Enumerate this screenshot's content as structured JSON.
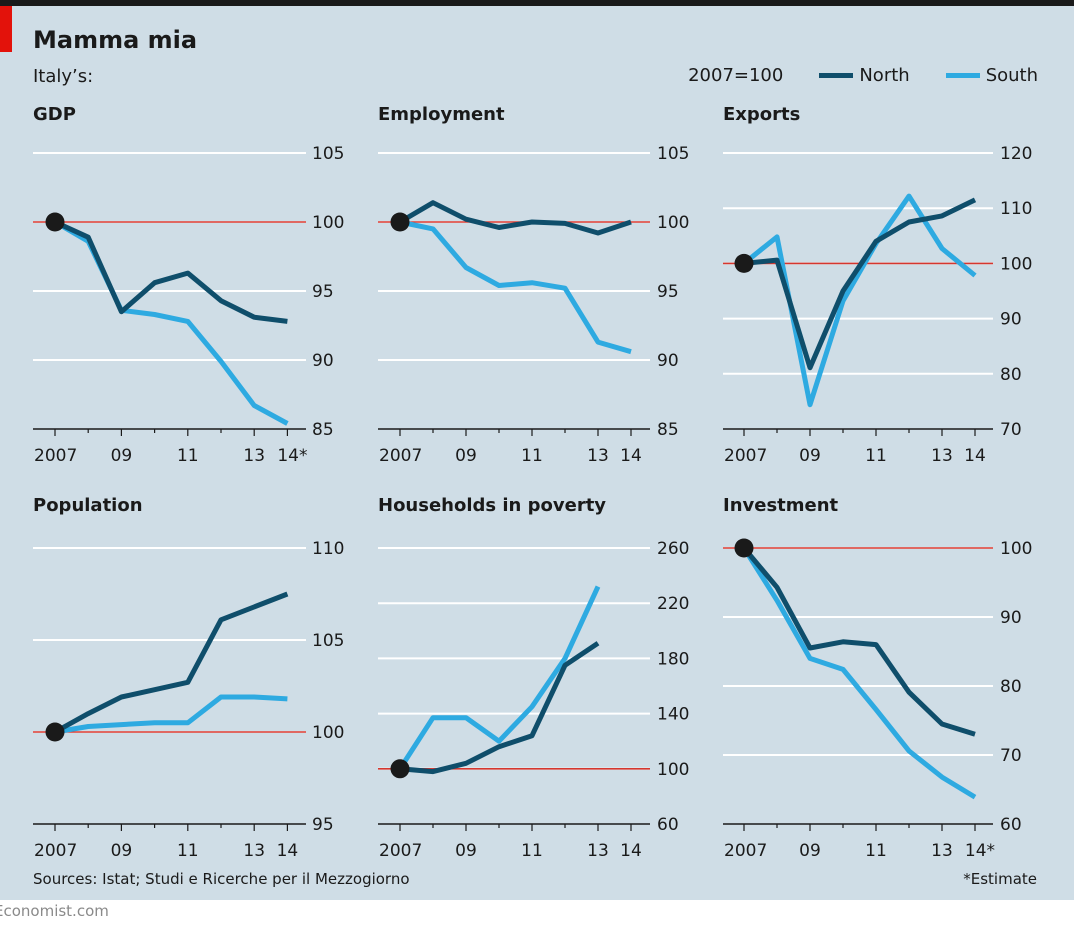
{
  "header": {
    "title": "Mamma mia",
    "subtitle": "Italy’s:",
    "base_note": "2007=100"
  },
  "legend": [
    {
      "name": "North",
      "color": "#0f4e6b"
    },
    {
      "name": "South",
      "color": "#2eaae1"
    }
  ],
  "footer": {
    "source": "Sources: Istat; Studi e Ricerche per il Mezzogiorno",
    "footnote": "*Estimate",
    "brand": "Economist.com"
  },
  "chart_data": [
    {
      "type": "line",
      "title": "GDP",
      "x": [
        2007,
        2008,
        2009,
        2010,
        2011,
        2012,
        2013,
        2014
      ],
      "xticklabels": [
        "2007",
        "09",
        "11",
        "13",
        "14*"
      ],
      "ylim": [
        85,
        105
      ],
      "yticks": [
        85,
        90,
        95,
        100,
        105
      ],
      "baseline": 100,
      "series": [
        {
          "name": "North",
          "values": [
            100,
            98.9,
            93.5,
            95.6,
            96.3,
            94.3,
            93.1,
            92.8
          ]
        },
        {
          "name": "South",
          "values": [
            100,
            98.6,
            93.6,
            93.3,
            92.8,
            89.9,
            86.7,
            85.4
          ]
        }
      ]
    },
    {
      "type": "line",
      "title": "Employment",
      "x": [
        2007,
        2008,
        2009,
        2010,
        2011,
        2012,
        2013,
        2014
      ],
      "xticklabels": [
        "2007",
        "09",
        "11",
        "13",
        "14"
      ],
      "ylim": [
        85,
        105
      ],
      "yticks": [
        85,
        90,
        95,
        100,
        105
      ],
      "baseline": 100,
      "series": [
        {
          "name": "North",
          "values": [
            100,
            101.4,
            100.2,
            99.6,
            100,
            99.9,
            99.2,
            100
          ]
        },
        {
          "name": "South",
          "values": [
            100,
            99.5,
            96.7,
            95.4,
            95.6,
            95.2,
            91.3,
            90.6
          ]
        }
      ]
    },
    {
      "type": "line",
      "title": "Exports",
      "x": [
        2007,
        2008,
        2009,
        2010,
        2011,
        2012,
        2013,
        2014
      ],
      "xticklabels": [
        "2007",
        "09",
        "11",
        "13",
        "14"
      ],
      "ylim": [
        70,
        120
      ],
      "yticks": [
        70,
        80,
        90,
        100,
        110,
        120
      ],
      "baseline": 100,
      "series": [
        {
          "name": "North",
          "values": [
            100,
            100.6,
            81.1,
            95,
            104,
            107.5,
            108.6,
            111.5
          ]
        },
        {
          "name": "South",
          "values": [
            100,
            104.8,
            74.4,
            93.2,
            103.6,
            112.2,
            102.7,
            97.8
          ]
        }
      ]
    },
    {
      "type": "line",
      "title": "Population",
      "x": [
        2007,
        2008,
        2009,
        2010,
        2011,
        2012,
        2013,
        2014
      ],
      "xticklabels": [
        "2007",
        "09",
        "11",
        "13",
        "14"
      ],
      "ylim": [
        95,
        110
      ],
      "yticks": [
        95,
        100,
        105,
        110
      ],
      "baseline": 100,
      "series": [
        {
          "name": "North",
          "values": [
            100,
            101,
            101.9,
            102.3,
            102.7,
            106.1,
            106.8,
            107.5
          ]
        },
        {
          "name": "South",
          "values": [
            100,
            100.3,
            100.4,
            100.5,
            100.5,
            101.9,
            101.9,
            101.8
          ]
        }
      ]
    },
    {
      "type": "line",
      "title": "Households in poverty",
      "x": [
        2007,
        2008,
        2009,
        2010,
        2011,
        2012,
        2013
      ],
      "xticklabels": [
        "2007",
        "09",
        "11",
        "13",
        "14"
      ],
      "ylim": [
        60,
        260
      ],
      "yticks": [
        60,
        100,
        140,
        180,
        220,
        260
      ],
      "baseline": 100,
      "series": [
        {
          "name": "North",
          "values": [
            100,
            98,
            104,
            116,
            124,
            175,
            191
          ]
        },
        {
          "name": "South",
          "values": [
            100,
            137,
            137,
            120,
            145,
            180,
            232
          ]
        }
      ]
    },
    {
      "type": "line",
      "title": "Investment",
      "x": [
        2007,
        2008,
        2009,
        2010,
        2011,
        2012,
        2013,
        2014
      ],
      "xticklabels": [
        "2007",
        "09",
        "11",
        "13",
        "14*"
      ],
      "ylim": [
        60,
        100
      ],
      "yticks": [
        60,
        70,
        80,
        90,
        100
      ],
      "baseline": 100,
      "series": [
        {
          "name": "North",
          "values": [
            100,
            94.3,
            85.5,
            86.4,
            86,
            79.1,
            74.5,
            73
          ]
        },
        {
          "name": "South",
          "values": [
            100,
            92.4,
            84,
            82.4,
            76.6,
            70.6,
            66.8,
            63.9
          ]
        }
      ]
    }
  ]
}
